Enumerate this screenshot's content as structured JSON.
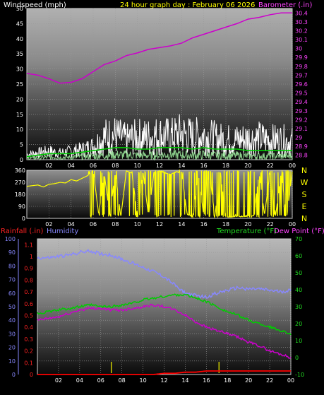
{
  "header": {
    "left_title": "Windspeed (mph)",
    "center_title": "24 hour graph day : February 06 2026",
    "right_title": "Barometer (.in)"
  },
  "colors": {
    "windspeed": "#ffffff",
    "gust": "#ffffff",
    "avg_wind": "#00cc00",
    "barometer": "#cc00cc",
    "wind_dir": "#ffff00",
    "humidity": "#8888ff",
    "temperature": "#00cc00",
    "dew_point": "#cc00cc",
    "rainfall": "#ff0000",
    "rain_rate": "#cccc00"
  },
  "bottom_legend": {
    "rainfall": "Rainfall (.in)",
    "humidity": "Humidity",
    "temperature": "Temperature (°F)",
    "dew_point": "Dew Point (°F)"
  },
  "chart_data": [
    {
      "type": "line",
      "x_ticks": [
        "02",
        "04",
        "06",
        "08",
        "10",
        "12",
        "14",
        "16",
        "18",
        "20",
        "22",
        "00"
      ],
      "y_left_ticks": [
        "0",
        "5",
        "10",
        "15",
        "20",
        "25",
        "30",
        "35",
        "40",
        "45",
        "50"
      ],
      "y_right_ticks": [
        "28.8",
        "28.9",
        "29",
        "29.1",
        "29.2",
        "29.3",
        "29.4",
        "29.5",
        "29.6",
        "29.7",
        "29.8",
        "29.9",
        "30",
        "30.1",
        "30.2",
        "30.3",
        "30.4"
      ],
      "ylim_left": [
        0,
        50
      ],
      "ylim_right": [
        28.75,
        30.45
      ],
      "series": [
        {
          "key": "barometer",
          "axis": "right",
          "x": [
            0,
            1,
            2,
            3,
            4,
            5,
            6,
            7,
            8,
            9,
            10,
            11,
            12,
            13,
            14,
            15,
            16,
            17,
            18,
            19,
            20,
            21,
            22,
            23,
            24
          ],
          "values": [
            29.72,
            29.7,
            29.66,
            29.61,
            29.62,
            29.66,
            29.74,
            29.82,
            29.86,
            29.92,
            29.95,
            29.99,
            30.01,
            30.03,
            30.06,
            30.12,
            30.16,
            30.2,
            30.24,
            30.28,
            30.33,
            30.35,
            30.38,
            30.4,
            30.4
          ]
        },
        {
          "key": "gust",
          "axis": "left",
          "x": [
            0,
            1,
            2,
            3,
            4,
            5,
            6,
            7,
            8,
            9,
            10,
            11,
            12,
            13,
            14,
            15,
            16,
            17,
            18,
            19,
            20,
            21,
            22,
            23,
            24
          ],
          "values": [
            3,
            4,
            5,
            4,
            5,
            6,
            8,
            14,
            15,
            12,
            14,
            14,
            15,
            14,
            16,
            14,
            15,
            13,
            12,
            12,
            13,
            13,
            12,
            12,
            11
          ]
        },
        {
          "key": "avg_wind",
          "axis": "left",
          "x": [
            0,
            1,
            2,
            3,
            4,
            5,
            6,
            7,
            8,
            9,
            10,
            11,
            12,
            13,
            14,
            15,
            16,
            17,
            18,
            19,
            20,
            21,
            22,
            23,
            24
          ],
          "values": [
            1,
            1.5,
            2,
            2,
            2,
            2.5,
            3,
            3.5,
            4,
            4,
            3.5,
            3.5,
            4,
            4,
            4,
            3.5,
            4,
            3.5,
            3.5,
            3.5,
            3,
            3,
            3,
            3,
            3
          ]
        }
      ]
    },
    {
      "type": "line",
      "x_ticks": [
        "02",
        "04",
        "06",
        "08",
        "10",
        "12",
        "14",
        "16",
        "18",
        "20",
        "22",
        "00"
      ],
      "y_left_ticks": [
        "0",
        "90",
        "180",
        "270",
        "360"
      ],
      "y_right_ticks": [
        "N",
        "W",
        "S",
        "E",
        "N"
      ],
      "ylim": [
        0,
        360
      ],
      "series": [
        {
          "key": "wind_dir",
          "x": [
            0,
            0.5,
            1,
            1.5,
            2,
            2.5,
            3,
            3.5,
            4,
            4.5,
            5,
            5.5,
            6,
            6.5,
            7,
            7.5,
            8,
            8.5,
            9,
            9.5,
            10,
            10.5,
            11,
            11.5,
            12,
            12.5,
            13,
            13.5,
            14,
            14.5,
            15,
            15.5,
            16,
            16.5,
            17,
            17.5,
            18,
            18.5,
            19,
            19.5,
            20,
            20.5,
            21,
            21.5,
            22,
            22.5,
            23,
            23.5,
            24
          ],
          "values": [
            240,
            245,
            250,
            235,
            255,
            260,
            270,
            265,
            290,
            280,
            300,
            320,
            360,
            30,
            340,
            20,
            350,
            10,
            355,
            340,
            30,
            350,
            20,
            345,
            355,
            340,
            330,
            350,
            345,
            30,
            10,
            340,
            20,
            355,
            15,
            350,
            10,
            10,
            15,
            12,
            15,
            20,
            340,
            25,
            355,
            20,
            345,
            10,
            350
          ]
        }
      ]
    },
    {
      "type": "line",
      "x_ticks": [
        "02",
        "04",
        "06",
        "08",
        "10",
        "12",
        "14",
        "16",
        "18",
        "20",
        "22",
        "00"
      ],
      "y_far_left_ticks": [
        "0",
        "10",
        "20",
        "30",
        "40",
        "50",
        "60",
        "70",
        "80",
        "90",
        "100"
      ],
      "y_left_ticks": [
        "0",
        "0.1",
        "0.2",
        "0.3",
        "0.4",
        "0.5",
        "0.6",
        "0.7",
        "0.8",
        "0.9",
        "1",
        "1.1"
      ],
      "y_right_ticks": [
        "-10",
        "0",
        "10",
        "20",
        "30",
        "40",
        "50",
        "60",
        "70"
      ],
      "ylim_humidity": [
        0,
        100
      ],
      "ylim_rain": [
        0,
        1.15
      ],
      "ylim_temp": [
        -10,
        70
      ],
      "series": [
        {
          "key": "humidity",
          "axis": "humidity",
          "x": [
            0,
            1,
            2,
            3,
            4,
            5,
            6,
            7,
            8,
            9,
            10,
            11,
            12,
            13,
            14,
            15,
            16,
            17,
            18,
            19,
            20,
            21,
            22,
            23,
            24
          ],
          "values": [
            86,
            86,
            87,
            88,
            90,
            91,
            89,
            88,
            85,
            82,
            79,
            76,
            72,
            66,
            60,
            58,
            57,
            60,
            62,
            64,
            63,
            63,
            62,
            61,
            62
          ]
        },
        {
          "key": "temperature",
          "axis": "temp",
          "x": [
            0,
            1,
            2,
            3,
            4,
            5,
            6,
            7,
            8,
            9,
            10,
            11,
            12,
            13,
            14,
            15,
            16,
            17,
            18,
            19,
            20,
            21,
            22,
            23,
            24
          ],
          "values": [
            26,
            27,
            28,
            29,
            30,
            31,
            30,
            30,
            31,
            32,
            34,
            35,
            36,
            37,
            37,
            35,
            33,
            30,
            27,
            25,
            22,
            20,
            18,
            16,
            14
          ]
        },
        {
          "key": "dew_point",
          "axis": "temp",
          "x": [
            0,
            1,
            2,
            3,
            4,
            5,
            6,
            7,
            8,
            9,
            10,
            11,
            12,
            13,
            14,
            15,
            16,
            17,
            18,
            19,
            20,
            21,
            22,
            23,
            24
          ],
          "values": [
            22,
            23,
            24,
            26,
            28,
            29,
            29,
            28,
            28,
            29,
            30,
            31,
            30,
            28,
            25,
            21,
            18,
            16,
            14,
            12,
            9,
            7,
            4,
            2,
            0
          ]
        },
        {
          "key": "rainfall",
          "axis": "rain",
          "x": [
            0,
            1,
            2,
            3,
            4,
            5,
            6,
            7,
            8,
            9,
            10,
            11,
            12,
            13,
            14,
            15,
            16,
            17,
            18,
            19,
            20,
            21,
            22,
            23,
            24
          ],
          "values": [
            0,
            0,
            0,
            0,
            0,
            0,
            0,
            0,
            0,
            0,
            0,
            0,
            0.01,
            0.01,
            0.02,
            0.02,
            0.03,
            0.03,
            0.03,
            0.03,
            0.03,
            0.03,
            0.03,
            0.03,
            0.03
          ]
        }
      ]
    }
  ]
}
